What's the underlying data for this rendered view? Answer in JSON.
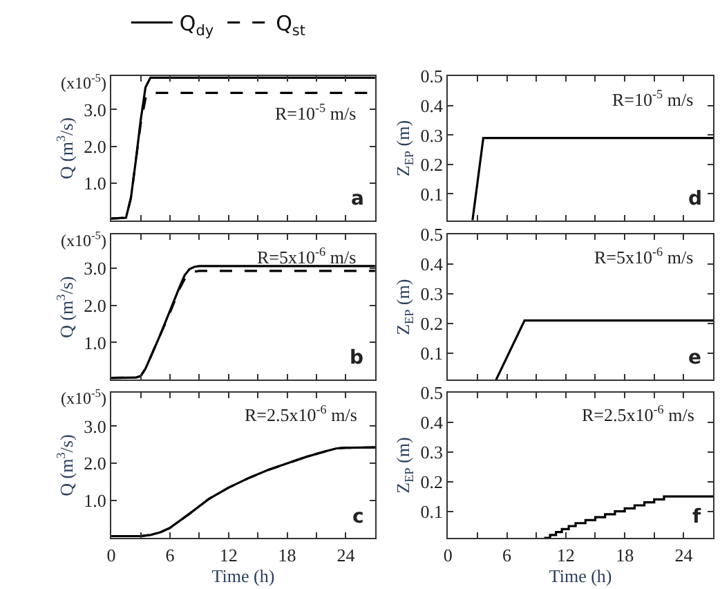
{
  "chart_data": [
    {
      "type": "line",
      "ylabel": "Q (m$^{3}$/s)",
      "legend": "top",
      "tick_labels": "y",
      "xlim": [
        0,
        27
      ],
      "ylim": [
        0,
        3.9
      ],
      "xticks": [
        {
          "value": 0,
          "label": null
        },
        {
          "value": 3,
          "label": null
        },
        {
          "value": 6,
          "label": null
        },
        {
          "value": 9,
          "label": null
        },
        {
          "value": 12,
          "label": null
        },
        {
          "value": 15,
          "label": null
        },
        {
          "value": 18,
          "label": null
        },
        {
          "value": 21,
          "label": null
        },
        {
          "value": 24,
          "label": null
        }
      ],
      "yticks": [
        {
          "value": 1,
          "label": "1.0"
        },
        {
          "value": 2,
          "label": "2.0"
        },
        {
          "value": 3,
          "label": "3.0"
        }
      ],
      "annotations": [
        "(x10$^{-5}$)",
        "R=10$^{-5}$ m/s",
        "a"
      ],
      "series": [
        {
          "name": "Q$_{dy}$",
          "color": "#000000",
          "line_style": "solid",
          "x": [
            0,
            1.5,
            2,
            2.5,
            3,
            3.5,
            4,
            27
          ],
          "values": [
            0.05,
            0.07,
            0.6,
            1.6,
            2.7,
            3.6,
            3.86,
            3.86
          ]
        },
        {
          "name": "Q$_{st}$",
          "color": "#000000",
          "line_style": "dashed",
          "x": [
            0,
            1.5,
            2,
            2.5,
            3,
            3.5,
            3.8,
            27
          ],
          "values": [
            0.05,
            0.07,
            0.6,
            1.6,
            2.6,
            3.3,
            3.45,
            3.45
          ]
        }
      ]
    },
    {
      "type": "line",
      "ylabel": "Q (m$^{3}$/s)",
      "tick_labels": "y",
      "xlim": [
        0,
        27
      ],
      "ylim": [
        0,
        3.9
      ],
      "xticks": [
        {
          "value": 0,
          "label": null
        },
        {
          "value": 3,
          "label": null
        },
        {
          "value": 6,
          "label": null
        },
        {
          "value": 9,
          "label": null
        },
        {
          "value": 12,
          "label": null
        },
        {
          "value": 15,
          "label": null
        },
        {
          "value": 18,
          "label": null
        },
        {
          "value": 21,
          "label": null
        },
        {
          "value": 24,
          "label": null
        }
      ],
      "yticks": [
        {
          "value": 1,
          "label": "1.0"
        },
        {
          "value": 2,
          "label": "2.0"
        },
        {
          "value": 3,
          "label": "3.0"
        }
      ],
      "annotations": [
        "(x10$^{-5}$)",
        "R=5x10$^{-6}$ m/s",
        "b"
      ],
      "series": [
        {
          "color": "#000000",
          "line_style": "solid",
          "x": [
            0,
            2.5,
            3,
            3.5,
            4,
            5,
            6,
            7,
            7.5,
            8,
            8.5,
            9,
            27
          ],
          "values": [
            0.05,
            0.06,
            0.1,
            0.3,
            0.6,
            1.2,
            1.85,
            2.5,
            2.8,
            2.97,
            3.03,
            3.05,
            3.05
          ]
        },
        {
          "color": "#000000",
          "line_style": "dashed",
          "x": [
            0,
            2.5,
            3,
            3.5,
            4,
            5,
            6,
            7,
            7.5,
            8,
            8.5,
            9,
            27
          ],
          "values": [
            0.05,
            0.06,
            0.1,
            0.3,
            0.6,
            1.2,
            1.8,
            2.45,
            2.7,
            2.85,
            2.9,
            2.92,
            2.92
          ]
        }
      ]
    },
    {
      "type": "line",
      "ylabel": "Q (m$^{3}$/s)",
      "xlabel": "Time (h)",
      "xlim": [
        0,
        27
      ],
      "ylim": [
        0,
        3.9
      ],
      "xticks": [
        0,
        {
          "value": 3,
          "label": null
        },
        6,
        {
          "value": 9,
          "label": null
        },
        12,
        {
          "value": 15,
          "label": null
        },
        18,
        {
          "value": 21,
          "label": null
        },
        24
      ],
      "yticks": [
        {
          "value": 1,
          "label": "1.0"
        },
        {
          "value": 2,
          "label": "2.0"
        },
        {
          "value": 3,
          "label": "3.0"
        }
      ],
      "annotations": [
        "(x10$^{-5}$)",
        "R=2.5x10$^{-6}$ m/s",
        "c"
      ],
      "series": [
        {
          "color": "#000000",
          "line_style": "solid",
          "x": [
            0,
            3,
            4,
            5,
            6,
            8,
            10,
            12,
            14,
            16,
            18,
            20,
            22,
            23,
            24,
            27
          ],
          "values": [
            0.05,
            0.05,
            0.08,
            0.15,
            0.27,
            0.65,
            1.05,
            1.35,
            1.6,
            1.82,
            2.0,
            2.18,
            2.33,
            2.4,
            2.42,
            2.43
          ]
        },
        {
          "color": "#000000",
          "line_style": "dashed",
          "x": [
            0,
            3,
            4,
            5,
            6,
            8,
            10,
            12,
            14,
            16,
            18,
            20,
            22,
            23,
            24,
            27
          ],
          "values": [
            0.05,
            0.05,
            0.08,
            0.15,
            0.27,
            0.65,
            1.05,
            1.35,
            1.6,
            1.82,
            2.0,
            2.18,
            2.33,
            2.4,
            2.42,
            2.43
          ]
        }
      ]
    },
    {
      "type": "line",
      "ylabel": "Z$_{EP}$ (m)",
      "tick_labels": "y",
      "xlim": [
        0,
        27
      ],
      "ylim": [
        0.01,
        0.5
      ],
      "xticks": [
        {
          "value": 0,
          "label": null
        },
        {
          "value": 3,
          "label": null
        },
        {
          "value": 6,
          "label": null
        },
        {
          "value": 9,
          "label": null
        },
        {
          "value": 12,
          "label": null
        },
        {
          "value": 15,
          "label": null
        },
        {
          "value": 18,
          "label": null
        },
        {
          "value": 21,
          "label": null
        },
        {
          "value": 24,
          "label": null
        }
      ],
      "yticks": [
        0.1,
        0.2,
        0.3,
        0.4,
        0.5
      ],
      "annotations": [
        "R=10$^{-5}$ m/s",
        "d"
      ],
      "series": [
        {
          "color": "#000000",
          "line_style": "solid",
          "x": [
            2.5,
            3.6,
            27
          ],
          "values": [
            0.01,
            0.29,
            0.29
          ]
        }
      ]
    },
    {
      "type": "line",
      "ylabel": "Z$_{EP}$ (m)",
      "tick_labels": "y",
      "xlim": [
        0,
        27
      ],
      "ylim": [
        0.01,
        0.5
      ],
      "xticks": [
        {
          "value": 0,
          "label": null
        },
        {
          "value": 3,
          "label": null
        },
        {
          "value": 6,
          "label": null
        },
        {
          "value": 9,
          "label": null
        },
        {
          "value": 12,
          "label": null
        },
        {
          "value": 15,
          "label": null
        },
        {
          "value": 18,
          "label": null
        },
        {
          "value": 21,
          "label": null
        },
        {
          "value": 24,
          "label": null
        }
      ],
      "yticks": [
        0.1,
        0.2,
        0.3,
        0.4,
        0.5
      ],
      "annotations": [
        "R=5x10$^{-6}$ m/s",
        "e"
      ],
      "series": [
        {
          "color": "#000000",
          "line_style": "solid",
          "x": [
            4.9,
            7.8,
            27
          ],
          "values": [
            0.01,
            0.21,
            0.21
          ]
        }
      ]
    },
    {
      "type": "step",
      "ylabel": "Z$_{EP}$ (m)",
      "xlabel": "Time (h)",
      "xlim": [
        0,
        27
      ],
      "ylim": [
        0.01,
        0.5
      ],
      "xticks": [
        0,
        {
          "value": 3,
          "label": null
        },
        6,
        {
          "value": 9,
          "label": null
        },
        12,
        {
          "value": 15,
          "label": null
        },
        18,
        {
          "value": 21,
          "label": null
        },
        24
      ],
      "yticks": [
        0.1,
        0.2,
        0.3,
        0.4,
        0.5
      ],
      "annotations": [
        "R=2.5x10$^{-6}$ m/s",
        "f"
      ],
      "series": [
        {
          "color": "#000000",
          "line_style": "solid",
          "x": [
            9.8,
            10.4,
            11,
            11.6,
            12.3,
            13,
            14,
            15,
            16,
            17,
            18,
            19,
            20,
            21,
            22,
            27
          ],
          "values": [
            0.01,
            0.02,
            0.03,
            0.04,
            0.05,
            0.06,
            0.07,
            0.08,
            0.09,
            0.1,
            0.11,
            0.12,
            0.13,
            0.14,
            0.15,
            0.15
          ]
        }
      ]
    }
  ]
}
